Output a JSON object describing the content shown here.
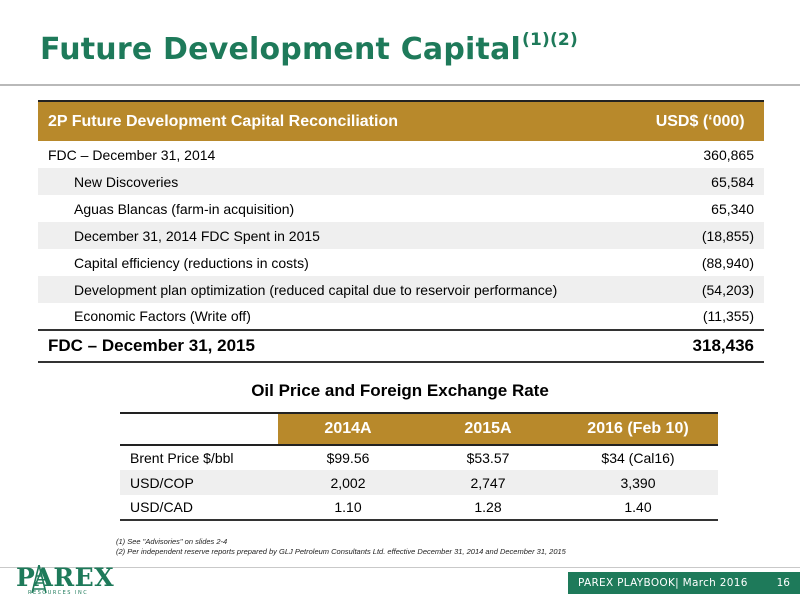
{
  "title": {
    "text": "Future Development Capital",
    "sup": "(1)(2)"
  },
  "fdc_table": {
    "header": {
      "label": "2P Future Development Capital Reconciliation",
      "value": "USD$ (‘000)"
    },
    "rows": [
      {
        "label": "FDC – December 31, 2014",
        "value": "360,865"
      },
      {
        "label": "New Discoveries",
        "value": "65,584"
      },
      {
        "label": "Aguas Blancas (farm-in acquisition)",
        "value": "65,340"
      },
      {
        "label": "December 31, 2014 FDC Spent in 2015",
        "value": "(18,855)"
      },
      {
        "label": "Capital efficiency (reductions in costs)",
        "value": "(88,940)"
      },
      {
        "label": "Development plan optimization (reduced capital due to reservoir performance)",
        "value": "(54,203)"
      },
      {
        "label": "Economic Factors (Write off)",
        "value": "(11,355)"
      }
    ],
    "total": {
      "label": "FDC – December 31, 2015",
      "value": "318,436"
    }
  },
  "oil_section": {
    "title": "Oil Price and Foreign Exchange Rate",
    "columns": [
      "2014A",
      "2015A",
      "2016 (Feb 10)"
    ],
    "rows": [
      {
        "label": "Brent Price $/bbl",
        "values": [
          "$99.56",
          "$53.57",
          "$34 (Cal16)"
        ]
      },
      {
        "label": "USD/COP",
        "values": [
          "2,002",
          "2,747",
          "3,390"
        ]
      },
      {
        "label": "USD/CAD",
        "values": [
          "1.10",
          "1.28",
          "1.40"
        ]
      }
    ]
  },
  "footnotes": {
    "note1": "(1) See \"Advisories\" on slides 2-4",
    "note2": "(2) Per independent reserve reports prepared by GLJ Petroleum Consultants Ltd. effective  December 31, 2014  and December 31, 2015"
  },
  "footer": {
    "logo_text": "PAREX",
    "logo_sub": "RESOURCES INC",
    "text": "PAREX PLAYBOOK| March  2016",
    "page_number": "16"
  },
  "colors": {
    "brand_green": "#1e7a5a",
    "header_gold": "#b8892b",
    "row_alt": "#efefef"
  }
}
